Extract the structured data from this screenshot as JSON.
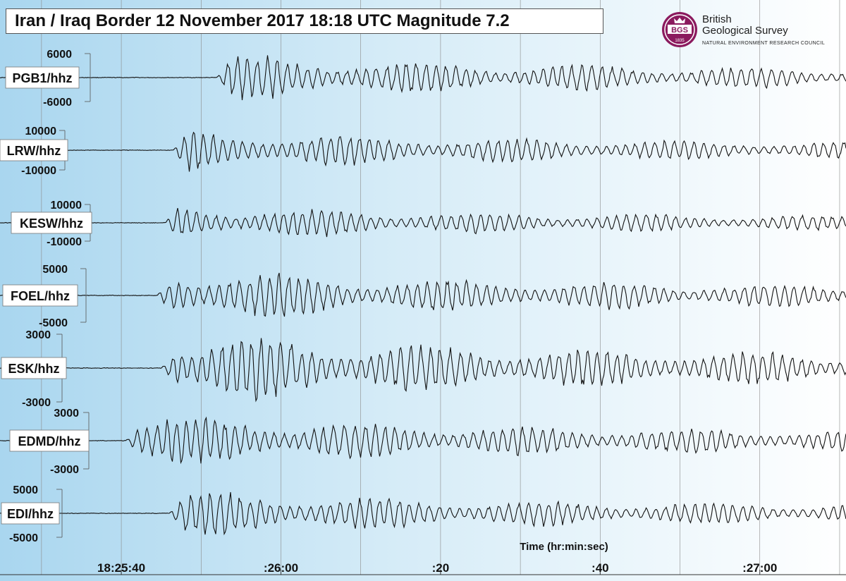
{
  "header": {
    "title": "Iran / Iraq Border  12 November 2017  18:18 UTC  Magnitude 7.2"
  },
  "logo": {
    "seal_text": "BGS",
    "seal_year": "1835",
    "name_line1": "British",
    "name_line2": "Geological Survey",
    "subtitle": "NATURAL ENVIRONMENT RESEARCH COUNCIL",
    "color": "#8b1a5e"
  },
  "colors": {
    "background_left": "#a9d6ef",
    "background_right": "#ffffff",
    "trace": "#111111",
    "label_box": "#ffffff"
  },
  "chart_data": {
    "type": "line",
    "xlabel": "Time (hr:min:sec)",
    "x_ticks": [
      "18:25:40",
      ":26:00",
      ":20",
      ":40",
      ":27:00"
    ],
    "x_tick_seconds": [
      0,
      20,
      40,
      60,
      80
    ],
    "xlim_seconds": [
      -15.2,
      90.8
    ],
    "grid": true,
    "traces": [
      {
        "name": "PGB1/hhz",
        "ylim": [
          -6000,
          6000
        ],
        "y_ticks": [
          "6000",
          "-6000"
        ],
        "onset_seconds": 11.9,
        "peak_amplitude": 6000
      },
      {
        "name": "LRW/hhz",
        "ylim": [
          -10000,
          10000
        ],
        "y_ticks": [
          "10000",
          "-10000"
        ],
        "onset_seconds": 6.5,
        "peak_amplitude": 11000
      },
      {
        "name": "KESW/hhz",
        "ylim": [
          -10000,
          10000
        ],
        "y_ticks": [
          "10000",
          "-10000"
        ],
        "onset_seconds": 5.5,
        "peak_amplitude": 10000
      },
      {
        "name": "FOEL/hhz",
        "ylim": [
          -5000,
          5000
        ],
        "y_ticks": [
          "5000",
          "-5000"
        ],
        "onset_seconds": 4.5,
        "peak_amplitude": 5200
      },
      {
        "name": "ESK/hhz",
        "ylim": [
          -3000,
          3000
        ],
        "y_ticks": [
          "3000",
          "-3000"
        ],
        "onset_seconds": 5.0,
        "peak_amplitude": 3400
      },
      {
        "name": "EDMD/hhz",
        "ylim": [
          -3000,
          3000
        ],
        "y_ticks": [
          "3000",
          "-3000"
        ],
        "onset_seconds": 0.5,
        "peak_amplitude": 3000
      },
      {
        "name": "EDI/hhz",
        "ylim": [
          -5000,
          5000
        ],
        "y_ticks": [
          "5000",
          "-5000"
        ],
        "onset_seconds": 6.0,
        "peak_amplitude": 5000
      }
    ]
  }
}
